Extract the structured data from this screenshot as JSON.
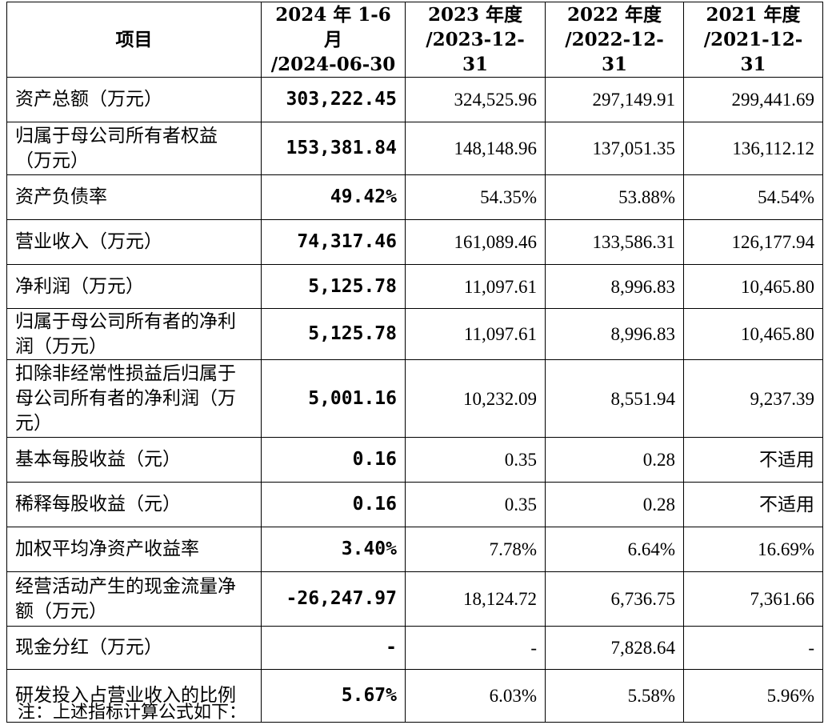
{
  "table": {
    "headers": [
      {
        "line1": "项目",
        "line2": ""
      },
      {
        "line1": "2024 年 1-6 月",
        "line2": "/2024-06-30"
      },
      {
        "line1": "2023 年度",
        "line2": "/2023-12-31"
      },
      {
        "line1": "2022 年度",
        "line2": "/2022-12-31"
      },
      {
        "line1": "2021 年度",
        "line2": "/2021-12-31"
      }
    ],
    "rows": [
      {
        "label": "资产总额（万元）",
        "values": [
          "303,222.45",
          "324,525.96",
          "297,149.91",
          "299,441.69"
        ]
      },
      {
        "label": "归属于母公司所有者权益（万元）",
        "values": [
          "153,381.84",
          "148,148.96",
          "137,051.35",
          "136,112.12"
        ]
      },
      {
        "label": "资产负债率",
        "values": [
          "49.42%",
          "54.35%",
          "53.88%",
          "54.54%"
        ]
      },
      {
        "label": "营业收入（万元）",
        "values": [
          "74,317.46",
          "161,089.46",
          "133,586.31",
          "126,177.94"
        ]
      },
      {
        "label": "净利润（万元）",
        "values": [
          "5,125.78",
          "11,097.61",
          "8,996.83",
          "10,465.80"
        ]
      },
      {
        "label": "归属于母公司所有者的净利润（万元）",
        "values": [
          "5,125.78",
          "11,097.61",
          "8,996.83",
          "10,465.80"
        ]
      },
      {
        "label": "扣除非经常性损益后归属于母公司所有者的净利润（万元）",
        "values": [
          "5,001.16",
          "10,232.09",
          "8,551.94",
          "9,237.39"
        ]
      },
      {
        "label": "基本每股收益（元）",
        "values": [
          "0.16",
          "0.35",
          "0.28",
          "不适用"
        ]
      },
      {
        "label": "稀释每股收益（元）",
        "values": [
          "0.16",
          "0.35",
          "0.28",
          "不适用"
        ]
      },
      {
        "label": "加权平均净资产收益率",
        "values": [
          "3.40%",
          "7.78%",
          "6.64%",
          "16.69%"
        ]
      },
      {
        "label": "经营活动产生的现金流量净额（万元）",
        "values": [
          "-26,247.97",
          "18,124.72",
          "6,736.75",
          "7,361.66"
        ]
      },
      {
        "label": "现金分红（万元）",
        "values": [
          "-",
          "-",
          "7,828.64",
          "-"
        ]
      },
      {
        "label": "研发投入占营业收入的比例",
        "values": [
          "5.67%",
          "6.03%",
          "5.58%",
          "5.96%"
        ]
      }
    ]
  },
  "footnote": "注：上述指标计算公式如下："
}
